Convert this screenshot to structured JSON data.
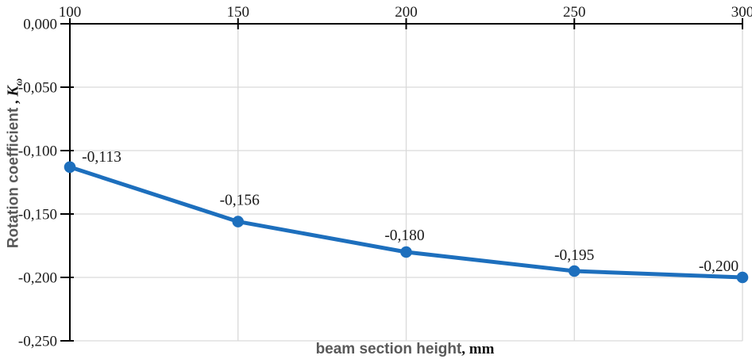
{
  "chart_data": {
    "type": "line",
    "title": "",
    "legend": false,
    "grid": true,
    "grid_color": "#d9d9d9",
    "axis_color": "#000000",
    "tick_label_color": "#1a1a1a",
    "data_label_color": "#1a1a1a",
    "x_axis": {
      "position": "top",
      "title_main": "beam section height",
      "title_unit": ", mm",
      "ticks": [
        100,
        150,
        200,
        250,
        300
      ],
      "tick_labels": [
        "100",
        "150",
        "200",
        "250",
        "300"
      ],
      "range": [
        100,
        300
      ]
    },
    "y_axis": {
      "position": "left",
      "title_main": "Rotation coefficient",
      "title_separator": " , ",
      "title_symbol": "K",
      "title_subscript": "ω",
      "ticks": [
        0,
        -0.05,
        -0.1,
        -0.15,
        -0.2,
        -0.25
      ],
      "tick_labels": [
        "0,000",
        "-0,050",
        "-0,100",
        "-0,150",
        "-0,200",
        "-0,250"
      ],
      "range": [
        -0.25,
        0
      ]
    },
    "series": [
      {
        "name": "rotation-coefficient",
        "color": "#1d6fbd",
        "marker": "circle",
        "x": [
          100,
          150,
          200,
          250,
          300
        ],
        "y": [
          -0.113,
          -0.156,
          -0.18,
          -0.195,
          -0.2
        ],
        "data_labels": [
          "-0,113",
          "-0,156",
          "-0,180",
          "-0,195",
          "-0,200"
        ]
      }
    ]
  }
}
